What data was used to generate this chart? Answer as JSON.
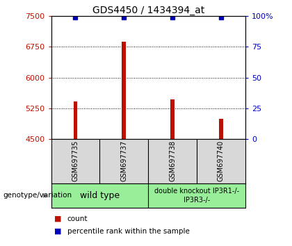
{
  "title": "GDS4450 / 1434394_at",
  "samples": [
    "GSM697735",
    "GSM697737",
    "GSM697738",
    "GSM697740"
  ],
  "counts": [
    5420,
    6870,
    5470,
    4990
  ],
  "percentiles": [
    99,
    99,
    99,
    99
  ],
  "ylim_left": [
    4500,
    7500
  ],
  "yticks_left": [
    4500,
    5250,
    6000,
    6750,
    7500
  ],
  "yticks_right": [
    0,
    25,
    50,
    75,
    100
  ],
  "bar_color": "#bb1100",
  "dot_color": "#0000bb",
  "bg_color": "#d8d8d8",
  "group_color": "#99ee99",
  "bar_width": 0.08,
  "genotype_label": "genotype/variation",
  "legend_count": "count",
  "legend_pct": "percentile rank within the sample",
  "legend_count_color": "#bb1100",
  "legend_pct_color": "#0000bb",
  "title_fontsize": 10,
  "tick_fontsize": 8,
  "sample_fontsize": 7,
  "group_fontsize": 8
}
